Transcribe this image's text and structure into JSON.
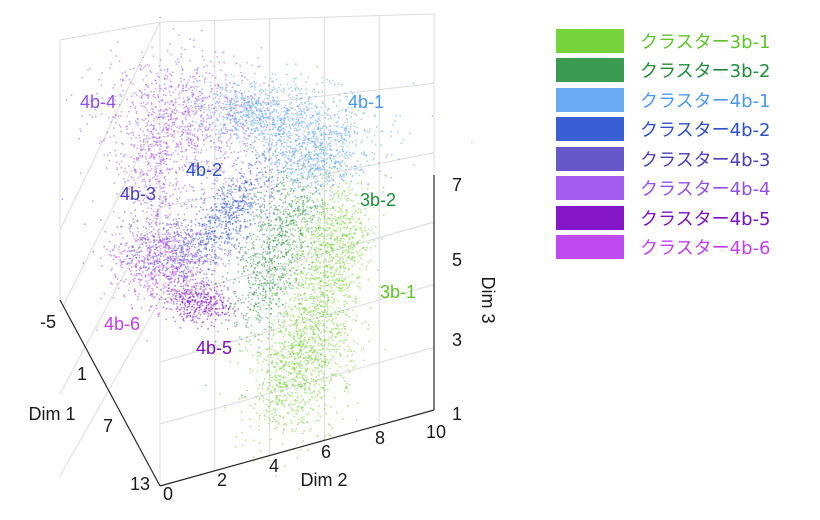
{
  "chart_data": {
    "type": "scatter",
    "projection": "3d",
    "axes": {
      "x": {
        "label": "Dim 1",
        "ticks": [
          "-5",
          "1",
          "7",
          "13"
        ],
        "range": [
          -5,
          13
        ]
      },
      "y": {
        "label": "Dim 2",
        "ticks": [
          "0",
          "2",
          "4",
          "6",
          "8",
          "10"
        ],
        "range": [
          0,
          10
        ]
      },
      "z": {
        "label": "Dim 3",
        "ticks": [
          "1",
          "3",
          "5",
          "7"
        ],
        "range": [
          1,
          7
        ]
      }
    },
    "grid": true,
    "legend_position": "top-right",
    "series": [
      {
        "name": "クラスター3b-1",
        "label": "3b-1",
        "color": "#76d33b",
        "label_color": "#5fc42a"
      },
      {
        "name": "クラスター3b-2",
        "label": "3b-2",
        "color": "#3a9a52",
        "label_color": "#1f8c3a"
      },
      {
        "name": "クラスター4b-1",
        "label": "4b-1",
        "color": "#6aaaf2",
        "label_color": "#4c98ee"
      },
      {
        "name": "クラスター4b-2",
        "label": "4b-2",
        "color": "#3a5fd4",
        "label_color": "#2c50c8"
      },
      {
        "name": "クラスター4b-3",
        "label": "4b-3",
        "color": "#6557c8",
        "label_color": "#4a3fb5"
      },
      {
        "name": "クラスター4b-4",
        "label": "4b-4",
        "color": "#a45cf0",
        "label_color": "#9350e8"
      },
      {
        "name": "クラスター4b-5",
        "label": "4b-5",
        "color": "#8418c8",
        "label_color": "#7a10c0"
      },
      {
        "name": "クラスター4b-6",
        "label": "4b-6",
        "color": "#c04af2",
        "label_color": "#c03ef0"
      }
    ]
  }
}
